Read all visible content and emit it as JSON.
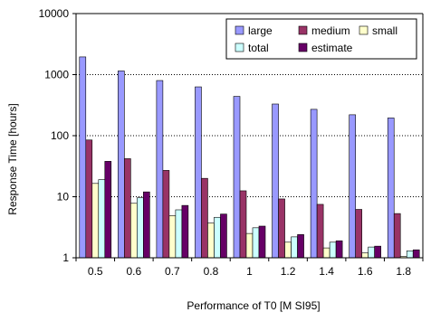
{
  "chart_data": {
    "type": "bar",
    "title": "",
    "xlabel": "Performance of T0 [M SI95]",
    "ylabel": "Response Time [hours]",
    "y_scale": "log",
    "ylim": [
      1,
      10000
    ],
    "y_ticks": [
      "1",
      "10",
      "100",
      "1000",
      "10000"
    ],
    "grid": "horizontal dotted",
    "legend_position": "top-right",
    "categories": [
      "0.5",
      "0.6",
      "0.7",
      "0.8",
      "1",
      "1.2",
      "1.4",
      "1.6",
      "1.8"
    ],
    "series": [
      {
        "name": "large",
        "color": "#9999ff",
        "values": [
          1950,
          1150,
          800,
          630,
          440,
          330,
          270,
          220,
          195
        ]
      },
      {
        "name": "medium",
        "color": "#993366",
        "values": [
          85,
          42,
          27,
          20,
          12.5,
          9.2,
          7.5,
          6.2,
          5.3
        ]
      },
      {
        "name": "small",
        "color": "#ffffcc",
        "values": [
          16.5,
          7.8,
          4.9,
          3.7,
          2.5,
          1.8,
          1.45,
          1.2,
          1.05
        ]
      },
      {
        "name": "total",
        "color": "#ccffff",
        "values": [
          19,
          9.6,
          6.1,
          4.6,
          3.1,
          2.2,
          1.8,
          1.5,
          1.3
        ]
      },
      {
        "name": "estimate",
        "color": "#660066",
        "values": [
          38,
          12,
          7.2,
          5.2,
          3.3,
          2.4,
          1.9,
          1.55,
          1.35
        ]
      }
    ]
  }
}
